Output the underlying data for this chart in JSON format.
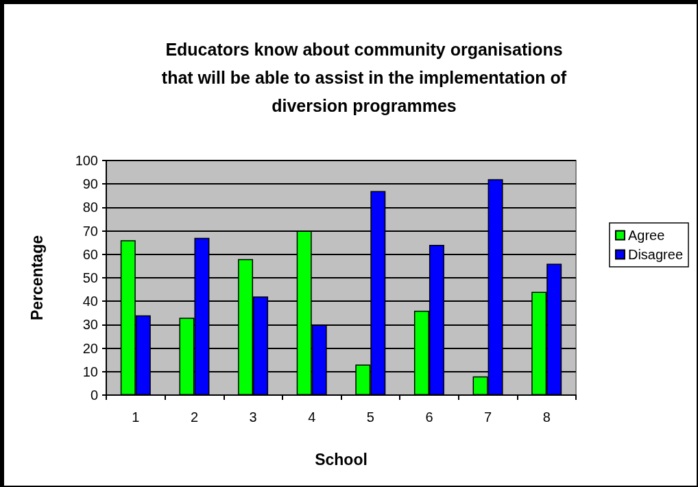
{
  "chart_data": {
    "type": "bar",
    "title": "Educators know about community organisations\nthat will be able to assist in the implementation of\ndiversion programmes",
    "xlabel": "School",
    "ylabel": "Percentage",
    "categories": [
      "1",
      "2",
      "3",
      "4",
      "5",
      "6",
      "7",
      "8"
    ],
    "series": [
      {
        "name": "Agree",
        "color": "#00ff00",
        "values": [
          66,
          33,
          58,
          70,
          13,
          36,
          8,
          44
        ]
      },
      {
        "name": "Disagree",
        "color": "#0000ff",
        "values": [
          34,
          67,
          42,
          30,
          87,
          64,
          92,
          56
        ]
      }
    ],
    "ylim": [
      0,
      100
    ],
    "yticks": [
      0,
      10,
      20,
      30,
      40,
      50,
      60,
      70,
      80,
      90,
      100
    ],
    "grid": "y",
    "legend": "right"
  }
}
